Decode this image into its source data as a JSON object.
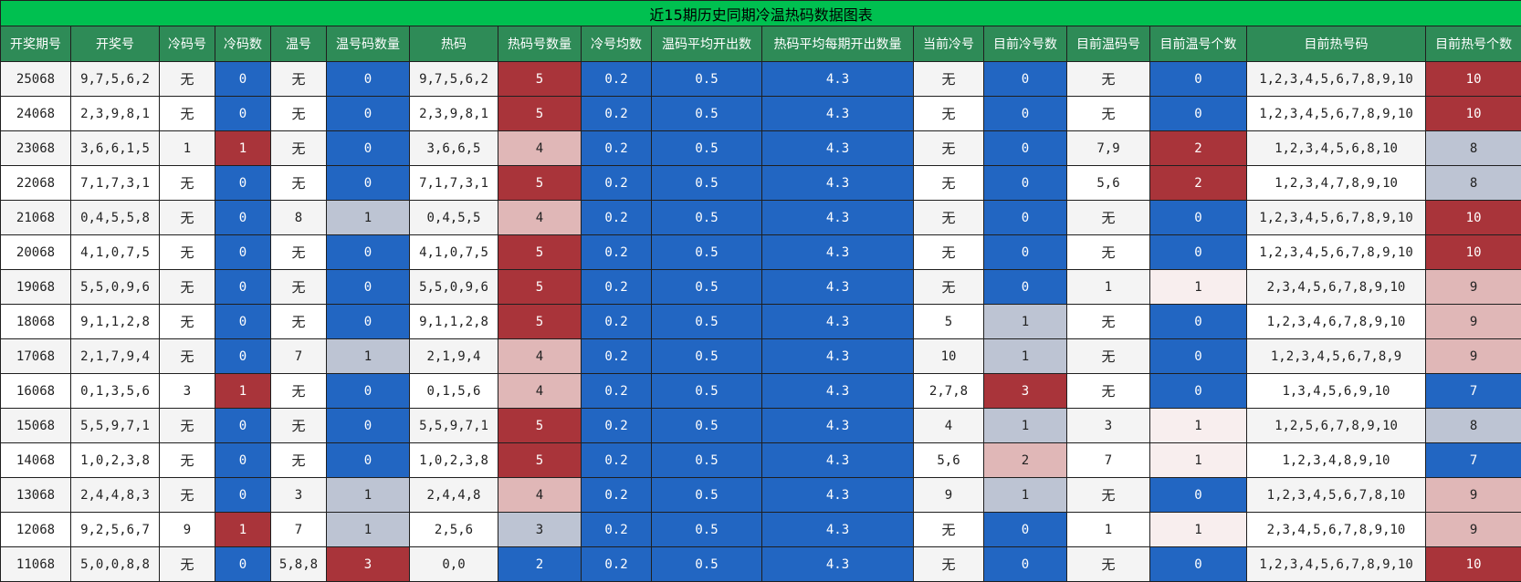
{
  "title": "近15期历史同期冷温热码数据图表",
  "columns": [
    "开奖期号",
    "开奖号",
    "冷码号",
    "冷码数",
    "温号",
    "温号码数量",
    "热码",
    "热码号数量",
    "冷号均数",
    "温码平均开出数",
    "热码平均每期开出数量",
    "当前冷号",
    "目前冷号数",
    "目前温码号",
    "目前温号个数",
    "目前热号码",
    "目前热号个数"
  ],
  "colors": {
    "blue": "#2266c2",
    "red": "#a9343a",
    "pink": "#e0b7b7",
    "grey": "#bdc4d3",
    "faint": "#f8eeee",
    "header": "#2e8b57",
    "title": "#00c050"
  },
  "rows": [
    [
      "25068",
      "9,7,5,6,2",
      "无",
      "0",
      "无",
      "0",
      "9,7,5,6,2",
      "5",
      "0.2",
      "0.5",
      "4.3",
      "无",
      "0",
      "无",
      "0",
      "1,2,3,4,5,6,7,8,9,10",
      "10"
    ],
    [
      "24068",
      "2,3,9,8,1",
      "无",
      "0",
      "无",
      "0",
      "2,3,9,8,1",
      "5",
      "0.2",
      "0.5",
      "4.3",
      "无",
      "0",
      "无",
      "0",
      "1,2,3,4,5,6,7,8,9,10",
      "10"
    ],
    [
      "23068",
      "3,6,6,1,5",
      "1",
      "1",
      "无",
      "0",
      "3,6,6,5",
      "4",
      "0.2",
      "0.5",
      "4.3",
      "无",
      "0",
      "7,9",
      "2",
      "1,2,3,4,5,6,8,10",
      "8"
    ],
    [
      "22068",
      "7,1,7,3,1",
      "无",
      "0",
      "无",
      "0",
      "7,1,7,3,1",
      "5",
      "0.2",
      "0.5",
      "4.3",
      "无",
      "0",
      "5,6",
      "2",
      "1,2,3,4,7,8,9,10",
      "8"
    ],
    [
      "21068",
      "0,4,5,5,8",
      "无",
      "0",
      "8",
      "1",
      "0,4,5,5",
      "4",
      "0.2",
      "0.5",
      "4.3",
      "无",
      "0",
      "无",
      "0",
      "1,2,3,4,5,6,7,8,9,10",
      "10"
    ],
    [
      "20068",
      "4,1,0,7,5",
      "无",
      "0",
      "无",
      "0",
      "4,1,0,7,5",
      "5",
      "0.2",
      "0.5",
      "4.3",
      "无",
      "0",
      "无",
      "0",
      "1,2,3,4,5,6,7,8,9,10",
      "10"
    ],
    [
      "19068",
      "5,5,0,9,6",
      "无",
      "0",
      "无",
      "0",
      "5,5,0,9,6",
      "5",
      "0.2",
      "0.5",
      "4.3",
      "无",
      "0",
      "1",
      "1",
      "2,3,4,5,6,7,8,9,10",
      "9"
    ],
    [
      "18068",
      "9,1,1,2,8",
      "无",
      "0",
      "无",
      "0",
      "9,1,1,2,8",
      "5",
      "0.2",
      "0.5",
      "4.3",
      "5",
      "1",
      "无",
      "0",
      "1,2,3,4,6,7,8,9,10",
      "9"
    ],
    [
      "17068",
      "2,1,7,9,4",
      "无",
      "0",
      "7",
      "1",
      "2,1,9,4",
      "4",
      "0.2",
      "0.5",
      "4.3",
      "10",
      "1",
      "无",
      "0",
      "1,2,3,4,5,6,7,8,9",
      "9"
    ],
    [
      "16068",
      "0,1,3,5,6",
      "3",
      "1",
      "无",
      "0",
      "0,1,5,6",
      "4",
      "0.2",
      "0.5",
      "4.3",
      "2,7,8",
      "3",
      "无",
      "0",
      "1,3,4,5,6,9,10",
      "7"
    ],
    [
      "15068",
      "5,5,9,7,1",
      "无",
      "0",
      "无",
      "0",
      "5,5,9,7,1",
      "5",
      "0.2",
      "0.5",
      "4.3",
      "4",
      "1",
      "3",
      "1",
      "1,2,5,6,7,8,9,10",
      "8"
    ],
    [
      "14068",
      "1,0,2,3,8",
      "无",
      "0",
      "无",
      "0",
      "1,0,2,3,8",
      "5",
      "0.2",
      "0.5",
      "4.3",
      "5,6",
      "2",
      "7",
      "1",
      "1,2,3,4,8,9,10",
      "7"
    ],
    [
      "13068",
      "2,4,4,8,3",
      "无",
      "0",
      "3",
      "1",
      "2,4,4,8",
      "4",
      "0.2",
      "0.5",
      "4.3",
      "9",
      "1",
      "无",
      "0",
      "1,2,3,4,5,6,7,8,10",
      "9"
    ],
    [
      "12068",
      "9,2,5,6,7",
      "9",
      "1",
      "7",
      "1",
      "2,5,6",
      "3",
      "0.2",
      "0.5",
      "4.3",
      "无",
      "0",
      "1",
      "1",
      "2,3,4,5,6,7,8,9,10",
      "9"
    ],
    [
      "11068",
      "5,0,0,8,8",
      "无",
      "0",
      "5,8,8",
      "3",
      "0,0",
      "2",
      "0.2",
      "0.5",
      "4.3",
      "无",
      "0",
      "无",
      "0",
      "1,2,3,4,5,6,7,8,9,10",
      "10"
    ]
  ],
  "cell_colors": [
    [
      "",
      "",
      "",
      "blue",
      "",
      "blue",
      "",
      "red",
      "blue",
      "blue",
      "blue",
      "",
      "blue",
      "",
      "blue",
      "",
      "red"
    ],
    [
      "",
      "",
      "",
      "blue",
      "",
      "blue",
      "",
      "red",
      "blue",
      "blue",
      "blue",
      "",
      "blue",
      "",
      "blue",
      "",
      "red"
    ],
    [
      "",
      "",
      "",
      "red",
      "",
      "blue",
      "",
      "pink",
      "blue",
      "blue",
      "blue",
      "",
      "blue",
      "",
      "red",
      "",
      "grey"
    ],
    [
      "",
      "",
      "",
      "blue",
      "",
      "blue",
      "",
      "red",
      "blue",
      "blue",
      "blue",
      "",
      "blue",
      "",
      "red",
      "",
      "grey"
    ],
    [
      "",
      "",
      "",
      "blue",
      "",
      "grey",
      "",
      "pink",
      "blue",
      "blue",
      "blue",
      "",
      "blue",
      "",
      "blue",
      "",
      "red"
    ],
    [
      "",
      "",
      "",
      "blue",
      "",
      "blue",
      "",
      "red",
      "blue",
      "blue",
      "blue",
      "",
      "blue",
      "",
      "blue",
      "",
      "red"
    ],
    [
      "",
      "",
      "",
      "blue",
      "",
      "blue",
      "",
      "red",
      "blue",
      "blue",
      "blue",
      "",
      "blue",
      "",
      "faint",
      "",
      "pink"
    ],
    [
      "",
      "",
      "",
      "blue",
      "",
      "blue",
      "",
      "red",
      "blue",
      "blue",
      "blue",
      "",
      "grey",
      "",
      "blue",
      "",
      "pink"
    ],
    [
      "",
      "",
      "",
      "blue",
      "",
      "grey",
      "",
      "pink",
      "blue",
      "blue",
      "blue",
      "",
      "grey",
      "",
      "blue",
      "",
      "pink"
    ],
    [
      "",
      "",
      "",
      "red",
      "",
      "blue",
      "",
      "pink",
      "blue",
      "blue",
      "blue",
      "",
      "red",
      "",
      "blue",
      "",
      "blue"
    ],
    [
      "",
      "",
      "",
      "blue",
      "",
      "blue",
      "",
      "red",
      "blue",
      "blue",
      "blue",
      "",
      "grey",
      "",
      "faint",
      "",
      "grey"
    ],
    [
      "",
      "",
      "",
      "blue",
      "",
      "blue",
      "",
      "red",
      "blue",
      "blue",
      "blue",
      "",
      "pink",
      "",
      "faint",
      "",
      "blue"
    ],
    [
      "",
      "",
      "",
      "blue",
      "",
      "grey",
      "",
      "pink",
      "blue",
      "blue",
      "blue",
      "",
      "grey",
      "",
      "blue",
      "",
      "pink"
    ],
    [
      "",
      "",
      "",
      "red",
      "",
      "grey",
      "",
      "grey",
      "blue",
      "blue",
      "blue",
      "",
      "blue",
      "",
      "faint",
      "",
      "pink"
    ],
    [
      "",
      "",
      "",
      "blue",
      "",
      "red",
      "",
      "blue",
      "blue",
      "blue",
      "blue",
      "",
      "blue",
      "",
      "blue",
      "",
      "red"
    ]
  ]
}
